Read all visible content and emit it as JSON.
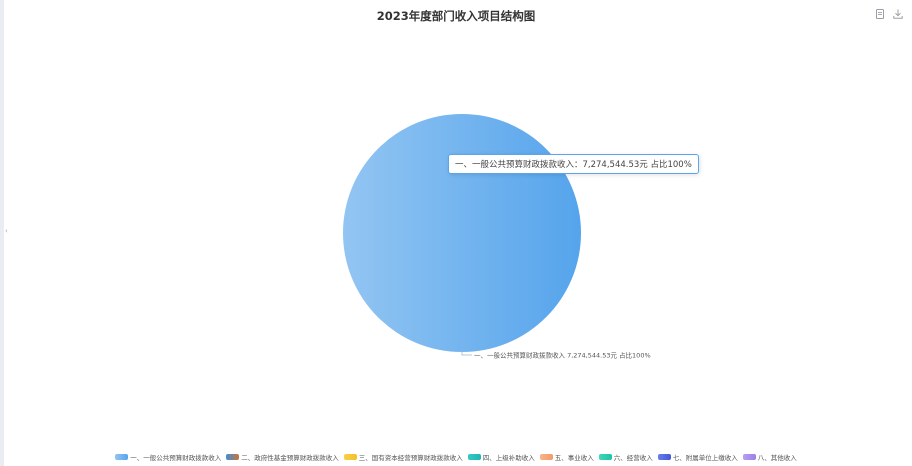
{
  "toolbar": {
    "data_view_icon": "document-icon",
    "download_icon": "download-icon"
  },
  "tooltip_text": "一、一般公共预算财政拨款收入：7,274,544.53元 占比100%",
  "chart_data": {
    "type": "pie",
    "title": "2023年度部门收入项目结构图",
    "legend_position": "bottom",
    "slices": [
      {
        "name": "一、一般公共预算财政拨款收入",
        "value": 7274544.53,
        "percent": 100,
        "label": "一、一般公共预算财政拨款收入 7,274,544.53元 占比100%",
        "color_from": "#93c5f2",
        "color_to": "#55a4ec"
      }
    ],
    "legend": [
      {
        "name": "一、一般公共预算财政拨款收入",
        "color_from": "#93c5f2",
        "color_to": "#55a4ec"
      },
      {
        "name": "二、政府性基金预算财政拨款收入",
        "color_from": "#3d8fd6",
        "color_to": "#c8763d"
      },
      {
        "name": "三、国有资本经营预算财政拨款收入",
        "color_from": "#f8cf47",
        "color_to": "#f3c12a"
      },
      {
        "name": "四、上级补助收入",
        "color_from": "#35c9c6",
        "color_to": "#1fb5b5"
      },
      {
        "name": "五、事业收入",
        "color_from": "#f8b48a",
        "color_to": "#f29a6a"
      },
      {
        "name": "六、经营收入",
        "color_from": "#3fd6b9",
        "color_to": "#1fc2a8"
      },
      {
        "name": "七、附属单位上缴收入",
        "color_from": "#6a7de8",
        "color_to": "#4657d8"
      },
      {
        "name": "八、其他收入",
        "color_from": "#b79ff0",
        "color_to": "#9c7fe6"
      }
    ]
  }
}
